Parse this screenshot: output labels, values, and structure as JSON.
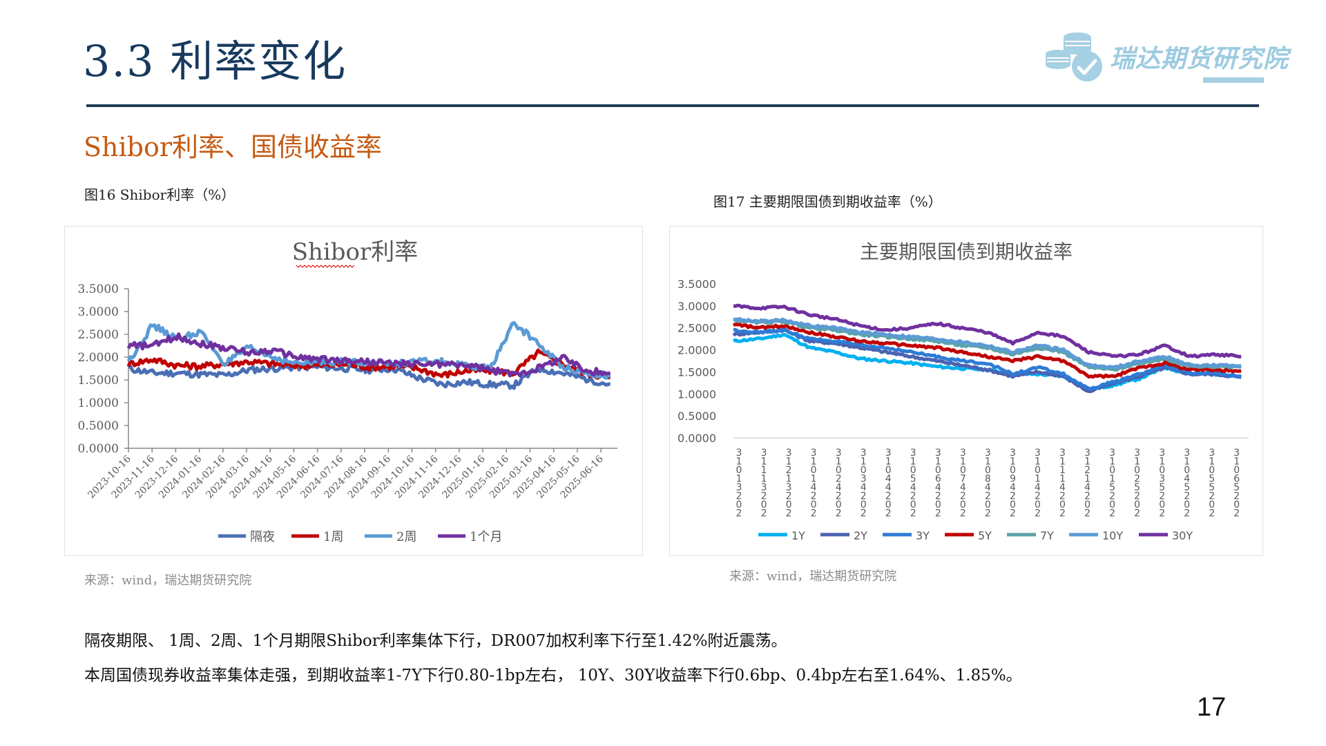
{
  "header": {
    "title": "3.3 利率变化",
    "logo_text": "瑞达期货研究院"
  },
  "section_subtitle": "Shibor利率、国债收益率",
  "figures": [
    {
      "label": "图16 Shibor利率（%）",
      "source": "来源：wind，瑞达期货研究院"
    },
    {
      "label": "图17  主要期限国债到期收益率（%）",
      "source": "来源：wind，瑞达期货研究院"
    }
  ],
  "body": {
    "line1": "隔夜期限、 1周、2周、1个月期限Shibor利率集体下行，DR007加权利率下行至1.42%附近震荡。",
    "line2": "本周国债现券收益率集体走强，到期收益率1-7Y下行0.80-1bp左右， 10Y、30Y收益率下行0.6bp、0.4bp左右至1.64%、1.85%。"
  },
  "page_number": "17",
  "colors": {
    "title": "#173a5e",
    "subtitle": "#c55a11",
    "rule": "#1f3b57",
    "logo": "#9ccbe0"
  },
  "chart_data": [
    {
      "type": "line",
      "title": "Shibor利率",
      "xlabel": "",
      "ylabel": "",
      "ylim": [
        0,
        3.5
      ],
      "yticks": [
        "0.0000",
        "0.5000",
        "1.0000",
        "1.5000",
        "2.0000",
        "2.5000",
        "3.0000",
        "3.5000"
      ],
      "grid": false,
      "legend_position": "bottom",
      "categories": [
        "2023-10-16",
        "2023-11-16",
        "2023-12-16",
        "2024-01-16",
        "2024-02-16",
        "2024-03-16",
        "2024-04-16",
        "2024-05-16",
        "2024-06-16",
        "2024-07-16",
        "2024-08-16",
        "2024-09-16",
        "2024-10-16",
        "2024-11-16",
        "2024-12-16",
        "2025-01-16",
        "2025-02-16",
        "2025-03-16",
        "2025-04-16",
        "2025-05-16",
        "2025-06-16"
      ],
      "series": [
        {
          "name": "隔夜",
          "color": "#4a6fb5",
          "values": [
            1.75,
            1.65,
            1.65,
            1.62,
            1.6,
            1.72,
            1.75,
            1.78,
            1.78,
            1.75,
            1.72,
            1.75,
            1.55,
            1.4,
            1.45,
            1.4,
            1.38,
            1.75,
            1.65,
            1.52,
            1.4
          ]
        },
        {
          "name": "1周",
          "color": "#c00000",
          "values": [
            1.85,
            1.95,
            1.82,
            1.8,
            1.85,
            1.9,
            1.85,
            1.82,
            1.82,
            1.85,
            1.78,
            1.8,
            1.75,
            1.6,
            1.7,
            1.7,
            1.65,
            2.1,
            1.85,
            1.65,
            1.55
          ]
        },
        {
          "name": "2周",
          "color": "#5b9bd5",
          "values": [
            1.9,
            2.7,
            2.4,
            2.55,
            1.85,
            2.2,
            2.0,
            1.85,
            1.9,
            1.9,
            1.9,
            1.85,
            1.9,
            1.9,
            1.8,
            1.75,
            2.75,
            2.3,
            1.8,
            1.65,
            1.6
          ]
        },
        {
          "name": "1个月",
          "color": "#7030a0",
          "values": [
            2.25,
            2.25,
            2.45,
            2.3,
            2.2,
            2.1,
            2.15,
            2.0,
            1.95,
            1.92,
            1.9,
            1.85,
            1.85,
            1.85,
            1.82,
            1.72,
            1.62,
            1.75,
            2.0,
            1.7,
            1.65
          ]
        }
      ]
    },
    {
      "type": "line",
      "title": "主要期限国债到期收益率",
      "xlabel": "",
      "ylabel": "",
      "ylim": [
        0,
        3.5
      ],
      "yticks": [
        "0.0000",
        "0.5000",
        "1.0000",
        "1.5000",
        "2.0000",
        "2.5000",
        "3.0000",
        "3.5000"
      ],
      "grid": false,
      "legend_position": "bottom",
      "categories": [
        "31013202",
        "31113202",
        "31213202",
        "31014202",
        "31024202",
        "31034202",
        "31044202",
        "31054202",
        "31064202",
        "31074202",
        "31084202",
        "31094202",
        "31014202",
        "31114202",
        "31214202",
        "31015202",
        "31025202",
        "31035202",
        "31045202",
        "31055202",
        "31065202"
      ],
      "series": [
        {
          "name": "1Y",
          "color": "#00b0f0",
          "values": [
            2.2,
            2.25,
            2.35,
            2.05,
            1.95,
            1.8,
            1.75,
            1.7,
            1.62,
            1.58,
            1.55,
            1.45,
            1.45,
            1.4,
            1.1,
            1.2,
            1.35,
            1.6,
            1.45,
            1.45,
            1.4
          ]
        },
        {
          "name": "2Y",
          "color": "#4a62b0",
          "values": [
            2.35,
            2.4,
            2.45,
            2.2,
            2.15,
            2.05,
            1.95,
            1.85,
            1.75,
            1.65,
            1.55,
            1.4,
            1.5,
            1.4,
            1.05,
            1.25,
            1.4,
            1.6,
            1.45,
            1.45,
            1.38
          ]
        },
        {
          "name": "3Y",
          "color": "#2e7bd6",
          "values": [
            2.45,
            2.4,
            2.45,
            2.25,
            2.2,
            2.1,
            2.05,
            1.95,
            1.85,
            1.75,
            1.7,
            1.45,
            1.6,
            1.45,
            1.1,
            1.28,
            1.45,
            1.65,
            1.48,
            1.48,
            1.4
          ]
        },
        {
          "name": "5Y",
          "color": "#c00000",
          "values": [
            2.58,
            2.5,
            2.55,
            2.4,
            2.3,
            2.2,
            2.15,
            2.1,
            2.05,
            1.95,
            1.85,
            1.75,
            1.85,
            1.75,
            1.4,
            1.4,
            1.6,
            1.7,
            1.55,
            1.55,
            1.52
          ]
        },
        {
          "name": "7Y",
          "color": "#5ba3a8",
          "values": [
            2.68,
            2.62,
            2.65,
            2.5,
            2.45,
            2.35,
            2.3,
            2.25,
            2.2,
            2.1,
            2.05,
            1.9,
            2.05,
            1.95,
            1.6,
            1.55,
            1.7,
            1.8,
            1.62,
            1.62,
            1.62
          ]
        },
        {
          "name": "10Y",
          "color": "#5b9bd5",
          "values": [
            2.7,
            2.65,
            2.68,
            2.55,
            2.5,
            2.4,
            2.35,
            2.3,
            2.25,
            2.18,
            2.1,
            1.95,
            2.1,
            2.0,
            1.65,
            1.6,
            1.75,
            1.85,
            1.65,
            1.65,
            1.64
          ]
        },
        {
          "name": "30Y",
          "color": "#7030a0",
          "values": [
            3.0,
            2.95,
            2.98,
            2.8,
            2.7,
            2.55,
            2.45,
            2.5,
            2.6,
            2.5,
            2.4,
            2.15,
            2.4,
            2.3,
            1.95,
            1.85,
            1.9,
            2.1,
            1.85,
            1.9,
            1.85
          ]
        }
      ]
    }
  ]
}
